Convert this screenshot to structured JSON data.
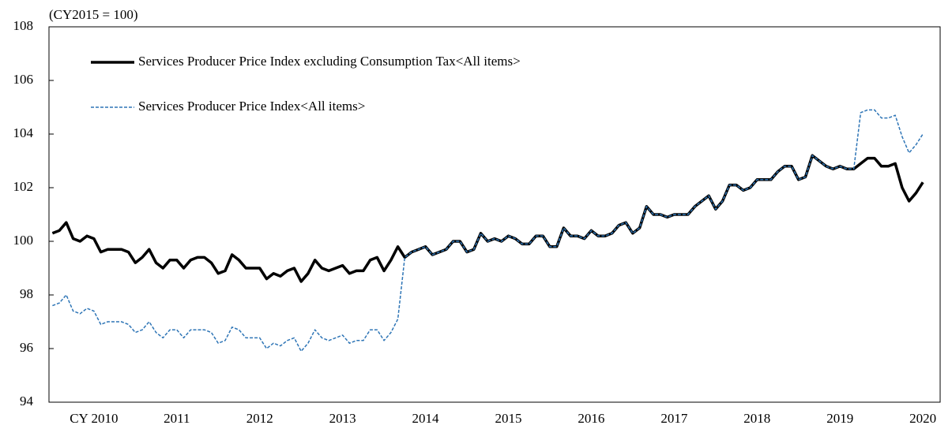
{
  "chart_data": {
    "type": "line",
    "title": "(CY2015 = 100)",
    "categories": [
      null,
      null,
      null,
      null,
      null,
      null,
      "CY 2010",
      null,
      null,
      null,
      null,
      null,
      null,
      null,
      null,
      null,
      null,
      null,
      "2011",
      null,
      null,
      null,
      null,
      null,
      null,
      null,
      null,
      null,
      null,
      null,
      "2012",
      null,
      null,
      null,
      null,
      null,
      null,
      null,
      null,
      null,
      null,
      null,
      "2013",
      null,
      null,
      null,
      null,
      null,
      null,
      null,
      null,
      null,
      null,
      null,
      "2014",
      null,
      null,
      null,
      null,
      null,
      null,
      null,
      null,
      null,
      null,
      null,
      "2015",
      null,
      null,
      null,
      null,
      null,
      null,
      null,
      null,
      null,
      null,
      null,
      "2016",
      null,
      null,
      null,
      null,
      null,
      null,
      null,
      null,
      null,
      null,
      null,
      "2017",
      null,
      null,
      null,
      null,
      null,
      null,
      null,
      null,
      null,
      null,
      null,
      "2018",
      null,
      null,
      null,
      null,
      null,
      null,
      null,
      null,
      null,
      null,
      null,
      "2019",
      null,
      null,
      null,
      null,
      null,
      null,
      null,
      null,
      null,
      null,
      null,
      "2020"
    ],
    "series": [
      {
        "name": "Services Producer Price Index excluding Consumption Tax<All items>",
        "color": "#000000",
        "style": "solid",
        "values": [
          100.3,
          100.4,
          100.7,
          100.1,
          100.0,
          100.2,
          100.1,
          99.6,
          99.7,
          99.7,
          99.7,
          99.6,
          99.2,
          99.4,
          99.7,
          99.2,
          99.0,
          99.3,
          99.3,
          99.0,
          99.3,
          99.4,
          99.4,
          99.2,
          98.8,
          98.9,
          99.5,
          99.3,
          99.0,
          99.0,
          99.0,
          98.6,
          98.8,
          98.7,
          98.9,
          99.0,
          98.5,
          98.8,
          99.3,
          99.0,
          98.9,
          99.0,
          99.1,
          98.8,
          98.9,
          98.9,
          99.3,
          99.4,
          98.9,
          99.3,
          99.8,
          99.4,
          99.6,
          99.7,
          99.8,
          99.5,
          99.6,
          99.7,
          100.0,
          100.0,
          99.6,
          99.7,
          100.3,
          100.0,
          100.1,
          100.0,
          100.2,
          100.1,
          99.9,
          99.9,
          100.2,
          100.2,
          99.8,
          99.8,
          100.5,
          100.2,
          100.2,
          100.1,
          100.4,
          100.2,
          100.2,
          100.3,
          100.6,
          100.7,
          100.3,
          100.5,
          101.3,
          101.0,
          101.0,
          100.9,
          101.0,
          101.0,
          101.0,
          101.3,
          101.5,
          101.7,
          101.2,
          101.5,
          102.1,
          102.1,
          101.9,
          102.0,
          102.3,
          102.3,
          102.3,
          102.6,
          102.8,
          102.8,
          102.3,
          102.4,
          103.2,
          103.0,
          102.8,
          102.7,
          102.8,
          102.7,
          102.7,
          102.9,
          103.1,
          103.1,
          102.8,
          102.8,
          102.9,
          102.0,
          101.5,
          101.8,
          102.2
        ]
      },
      {
        "name": "Services Producer Price Index<All items>",
        "color": "#2e75b6",
        "style": "dashed",
        "values": [
          97.6,
          97.7,
          98.0,
          97.4,
          97.3,
          97.5,
          97.4,
          96.9,
          97.0,
          97.0,
          97.0,
          96.9,
          96.6,
          96.7,
          97.0,
          96.6,
          96.4,
          96.7,
          96.7,
          96.4,
          96.7,
          96.7,
          96.7,
          96.6,
          96.2,
          96.3,
          96.8,
          96.7,
          96.4,
          96.4,
          96.4,
          96.0,
          96.2,
          96.1,
          96.3,
          96.4,
          95.9,
          96.2,
          96.7,
          96.4,
          96.3,
          96.4,
          96.5,
          96.2,
          96.3,
          96.3,
          96.7,
          96.7,
          96.3,
          96.6,
          97.1,
          99.4,
          99.6,
          99.7,
          99.8,
          99.5,
          99.6,
          99.7,
          100.0,
          100.0,
          99.6,
          99.7,
          100.3,
          100.0,
          100.1,
          100.0,
          100.2,
          100.1,
          99.9,
          99.9,
          100.2,
          100.2,
          99.8,
          99.8,
          100.5,
          100.2,
          100.2,
          100.1,
          100.4,
          100.2,
          100.2,
          100.3,
          100.6,
          100.7,
          100.3,
          100.5,
          101.3,
          101.0,
          101.0,
          100.9,
          101.0,
          101.0,
          101.0,
          101.3,
          101.5,
          101.7,
          101.2,
          101.5,
          102.1,
          102.1,
          101.9,
          102.0,
          102.3,
          102.3,
          102.3,
          102.6,
          102.8,
          102.8,
          102.3,
          102.4,
          103.2,
          103.0,
          102.8,
          102.7,
          102.8,
          102.7,
          102.7,
          104.8,
          104.9,
          104.9,
          104.6,
          104.6,
          104.7,
          103.9,
          103.3,
          103.6,
          104.0
        ]
      }
    ],
    "ylim": [
      94,
      108
    ],
    "yticks": [
      94,
      96,
      98,
      100,
      102,
      104,
      106,
      108
    ],
    "grid": false
  }
}
